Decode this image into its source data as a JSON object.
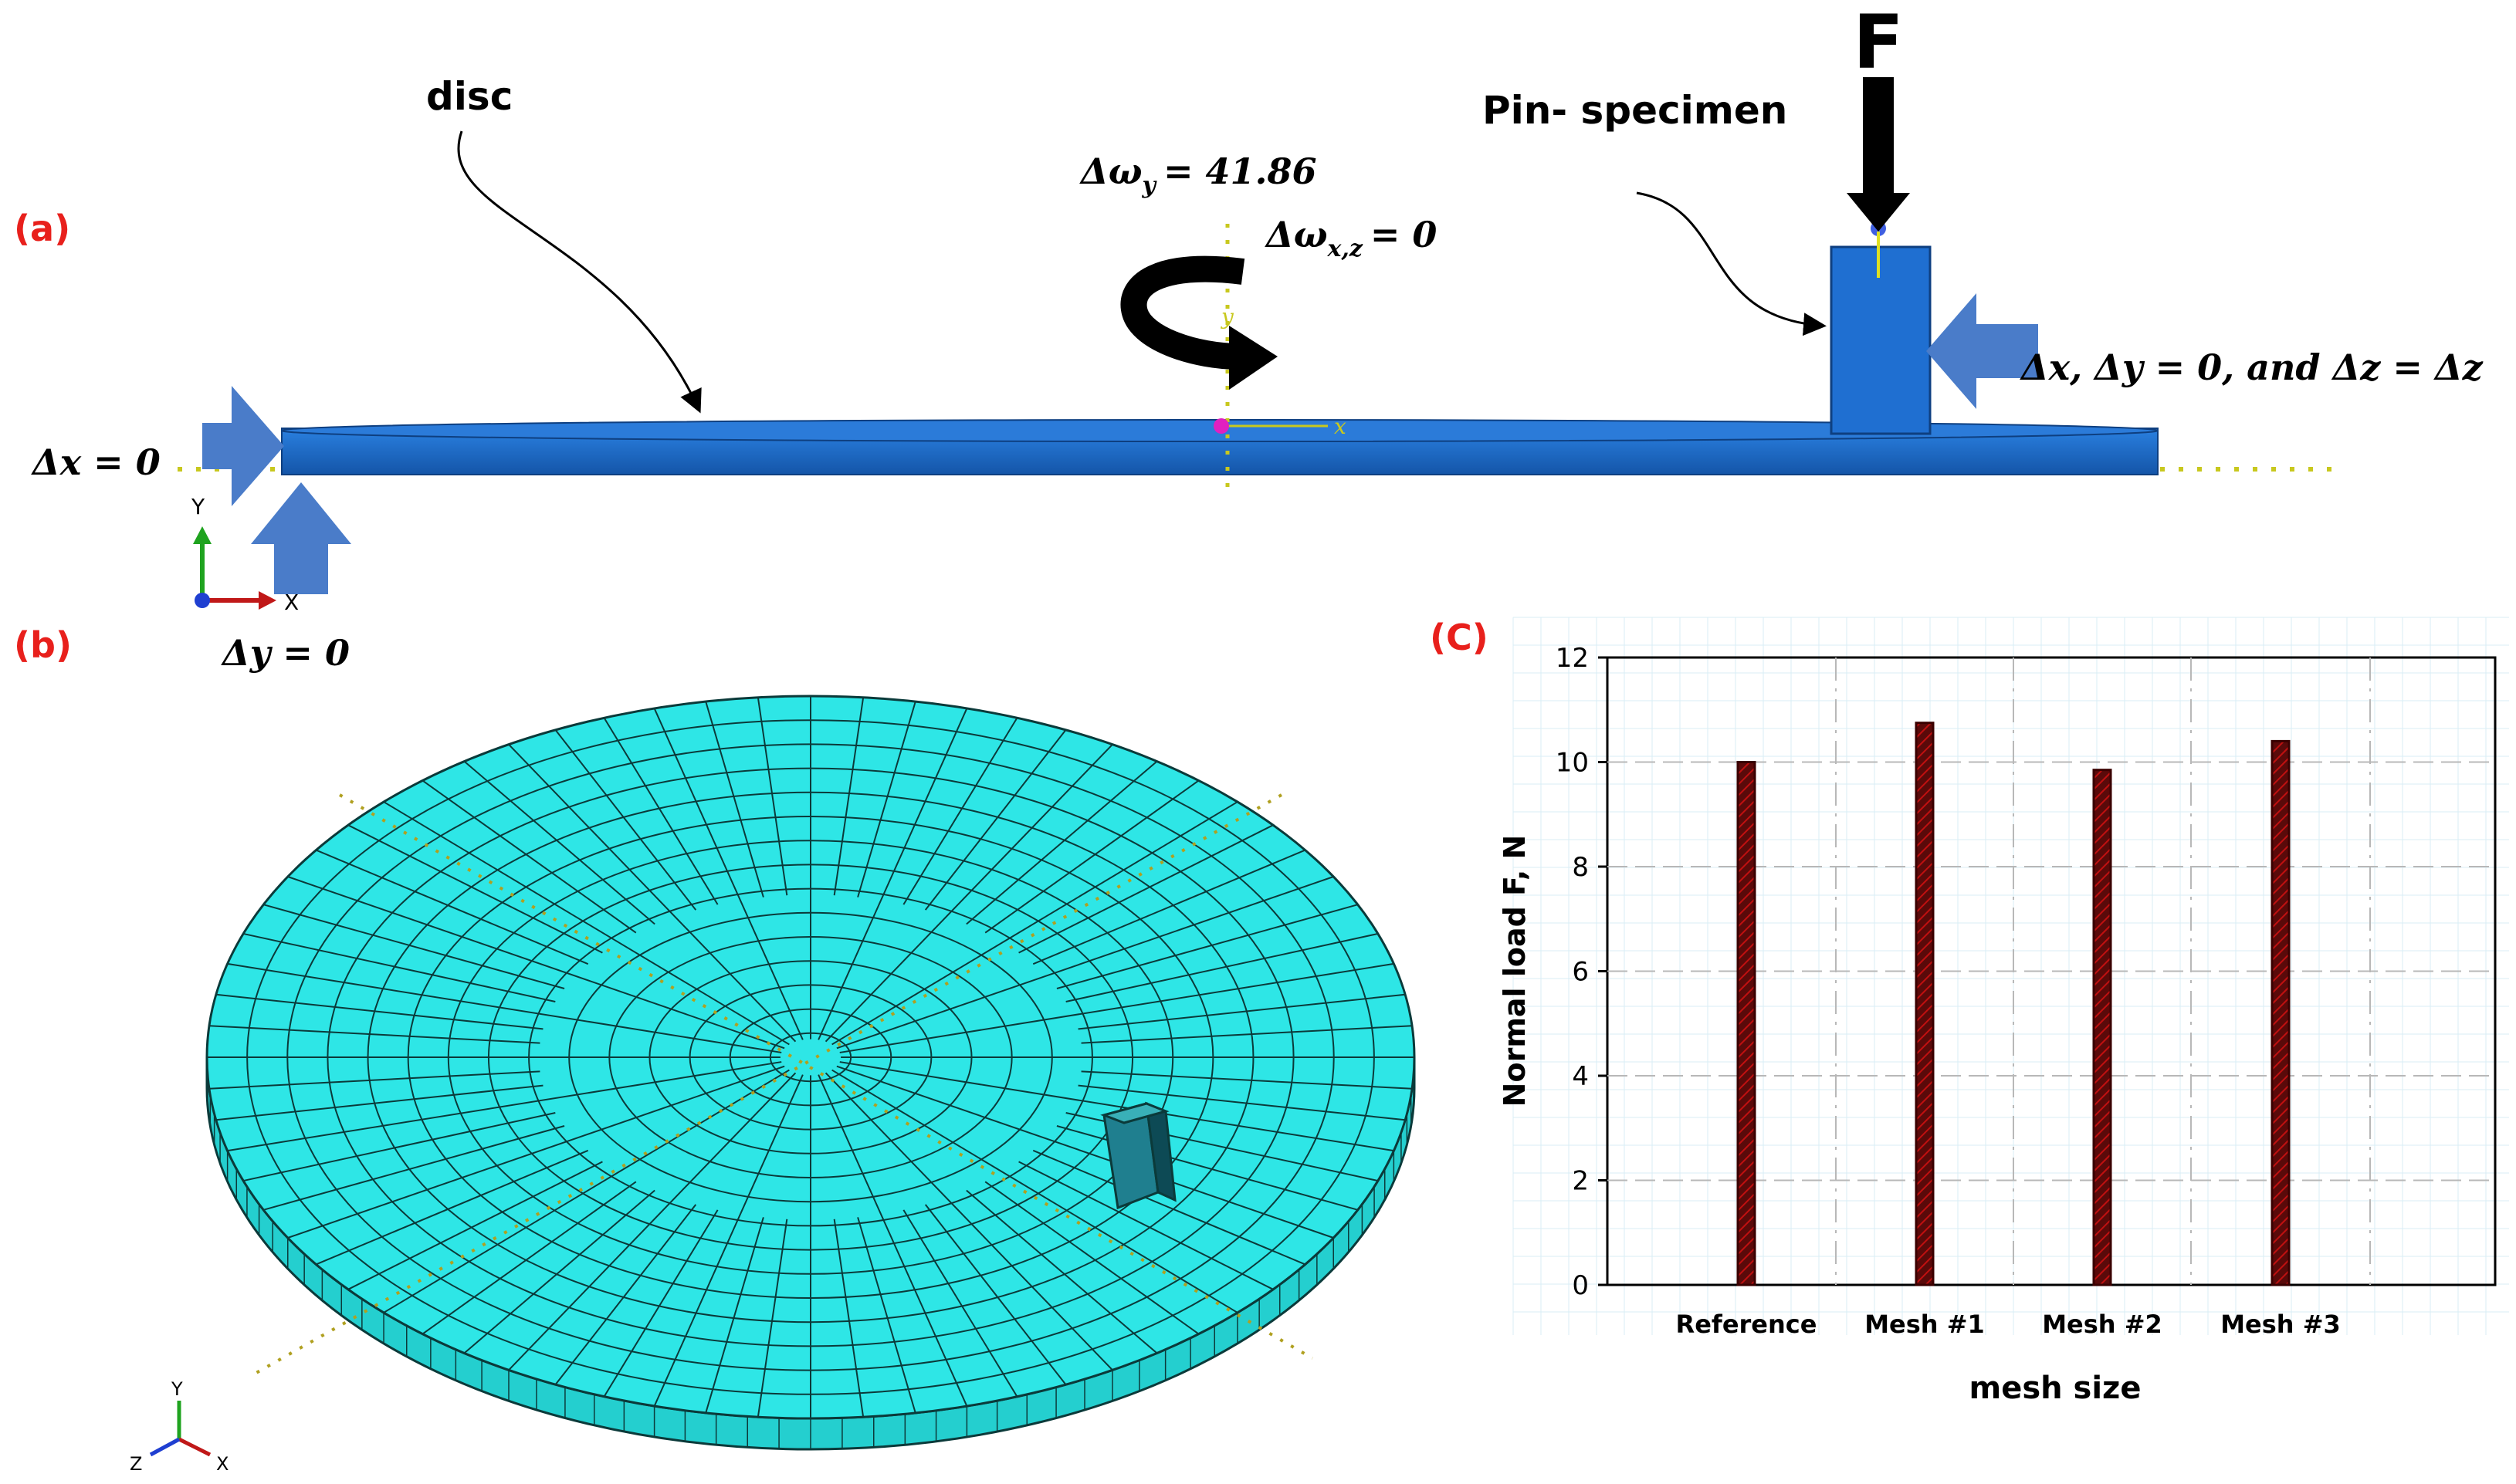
{
  "colors": {
    "panel_label": "#e8201c",
    "disc_blue": "#1f6fd1",
    "disc_top": "#2b7bd9",
    "arrow_blue": "#4a7cc9",
    "guide_yellow": "#c8c81e",
    "mesh_cyan": "#2ee6e6",
    "mesh_line": "#0b3a3a",
    "bar_dark": "#5a0a0a",
    "bar_red": "#c01010",
    "axis_y_green": "#1fa31f",
    "axis_x_red": "#c01818",
    "axis_z_blue": "#1f3fd1"
  },
  "panel_a": {
    "label_open": "(",
    "label_letter": "a",
    "label_close": ")",
    "disc_label": "disc",
    "pin_label": "Pin- specimen",
    "force_label": "F",
    "bc_omega_y": "Δω",
    "bc_omega_y_sub": "y",
    "bc_omega_y_val": "= 41.86",
    "bc_omega_xz": "Δω",
    "bc_omega_xz_sub": "x,z",
    "bc_omega_xz_val": "= 0",
    "bc_dx": "Δx = 0",
    "bc_dy": "Δy = 0",
    "bc_pin": "Δx, Δy = 0, and Δz = Δz",
    "triad_y": "Y",
    "triad_x": "X",
    "mini_y": "y",
    "mini_x": "x"
  },
  "panel_b": {
    "label_open": "(",
    "label_letter": "b",
    "label_close": ")",
    "triad_y": "Y",
    "triad_x": "X",
    "triad_z": "Z"
  },
  "panel_c": {
    "label_open": "(",
    "label_letter": "C",
    "label_close": ")"
  },
  "chart_data": {
    "type": "bar",
    "categories": [
      "Reference",
      "Mesh #1",
      "Mesh #2",
      "Mesh #3"
    ],
    "values": [
      10.0,
      10.75,
      9.85,
      10.4
    ],
    "xlabel": "mesh size",
    "ylabel": "Normal load F, N",
    "ylim": [
      0,
      12
    ],
    "yticks": [
      "0",
      "2",
      "4",
      "6",
      "8",
      "10",
      "12"
    ],
    "grid": true,
    "legend": "none"
  }
}
